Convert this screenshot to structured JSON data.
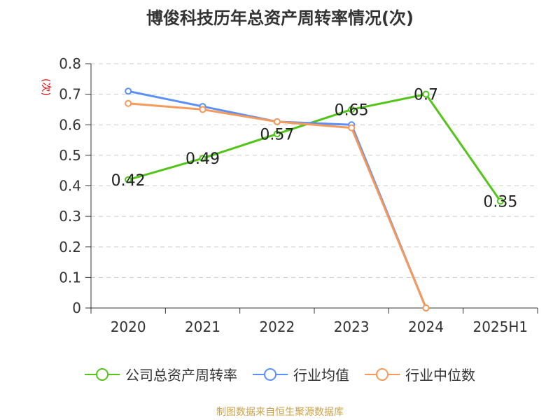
{
  "chart_data": {
    "type": "line",
    "title": "博俊科技历年总资产周转率情况(次)",
    "ylabel": "(次)",
    "categories": [
      "2020",
      "2021",
      "2022",
      "2023",
      "2024",
      "2025H1"
    ],
    "yticks": [
      "0",
      "0.1",
      "0.2",
      "0.3",
      "0.4",
      "0.5",
      "0.6",
      "0.7",
      "0.8"
    ],
    "ylim": [
      0,
      0.8
    ],
    "grid": true,
    "legend_position": "bottom",
    "series": [
      {
        "name": "公司总资产周转率",
        "color": "#52c41a",
        "values": [
          0.42,
          0.49,
          0.57,
          0.65,
          0.7,
          0.35
        ],
        "labels": [
          "0.42",
          "0.49",
          "0.57",
          "0.65",
          "0.7",
          "0.35"
        ]
      },
      {
        "name": "行业均值",
        "color": "#5b8ff9",
        "values": [
          0.71,
          0.66,
          0.61,
          0.6,
          0.0,
          null
        ]
      },
      {
        "name": "行业中位数",
        "color": "#f59a5b",
        "values": [
          0.67,
          0.65,
          0.61,
          0.59,
          0.0,
          null
        ]
      }
    ]
  },
  "source": "制图数据来自恒生聚源数据库"
}
